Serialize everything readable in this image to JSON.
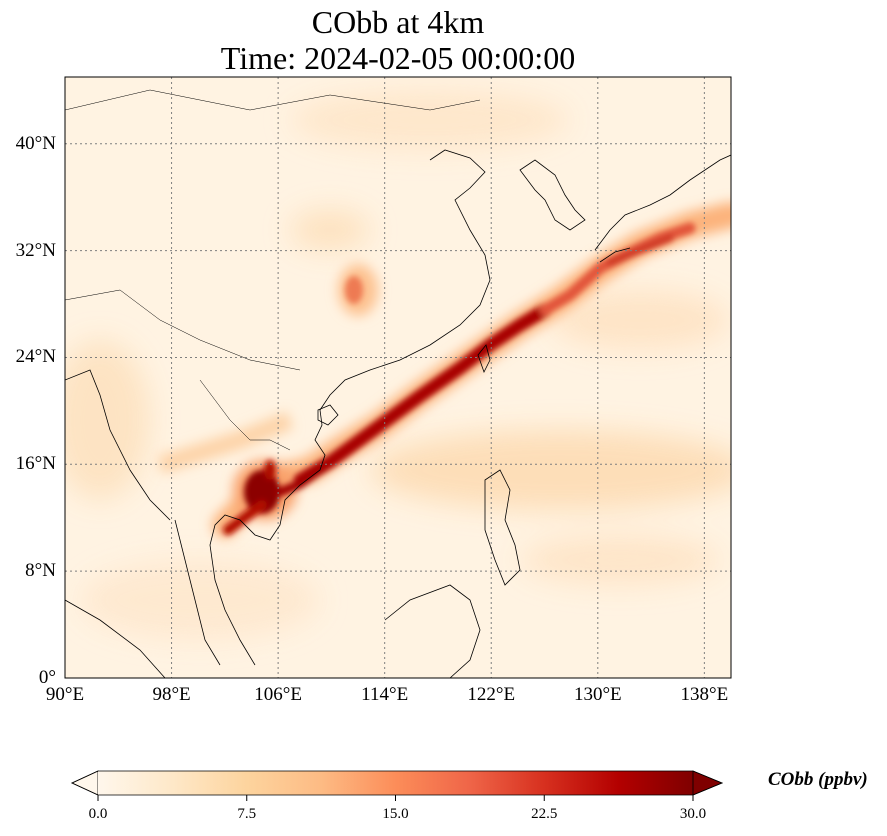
{
  "title": {
    "line1": "CObb at 4km",
    "line2": "Time: 2024-02-05 00:00:00"
  },
  "map": {
    "extent": {
      "lon_min": 90,
      "lon_max": 140,
      "lat_min": 0,
      "lat_max": 45
    },
    "lat_ticks": [
      {
        "value": 0,
        "label": "0°"
      },
      {
        "value": 8,
        "label": "8°N"
      },
      {
        "value": 16,
        "label": "16°N"
      },
      {
        "value": 24,
        "label": "24°N"
      },
      {
        "value": 32,
        "label": "32°N"
      },
      {
        "value": 40,
        "label": "40°N"
      }
    ],
    "lon_ticks": [
      {
        "value": 90,
        "label": "90°E"
      },
      {
        "value": 98,
        "label": "98°E"
      },
      {
        "value": 106,
        "label": "106°E"
      },
      {
        "value": 114,
        "label": "114°E"
      },
      {
        "value": 122,
        "label": "122°E"
      },
      {
        "value": 130,
        "label": "130°E"
      },
      {
        "value": 138,
        "label": "138°E"
      }
    ],
    "gridlines": true,
    "colormap": "OrRd"
  },
  "colorbar": {
    "label": "CObb (ppbv)",
    "min": 0,
    "max": 30,
    "ticks": [
      {
        "value": 0,
        "label": "0.0"
      },
      {
        "value": 7.5,
        "label": "7.5"
      },
      {
        "value": 15,
        "label": "15.0"
      },
      {
        "value": 22.5,
        "label": "22.5"
      },
      {
        "value": 30,
        "label": "30.0"
      }
    ],
    "extend": "both",
    "colors": [
      "#fff7ec",
      "#fee8c8",
      "#fdd49e",
      "#fdbb84",
      "#fc8d59",
      "#ef6548",
      "#d7301f",
      "#b30000",
      "#7f0000"
    ]
  }
}
